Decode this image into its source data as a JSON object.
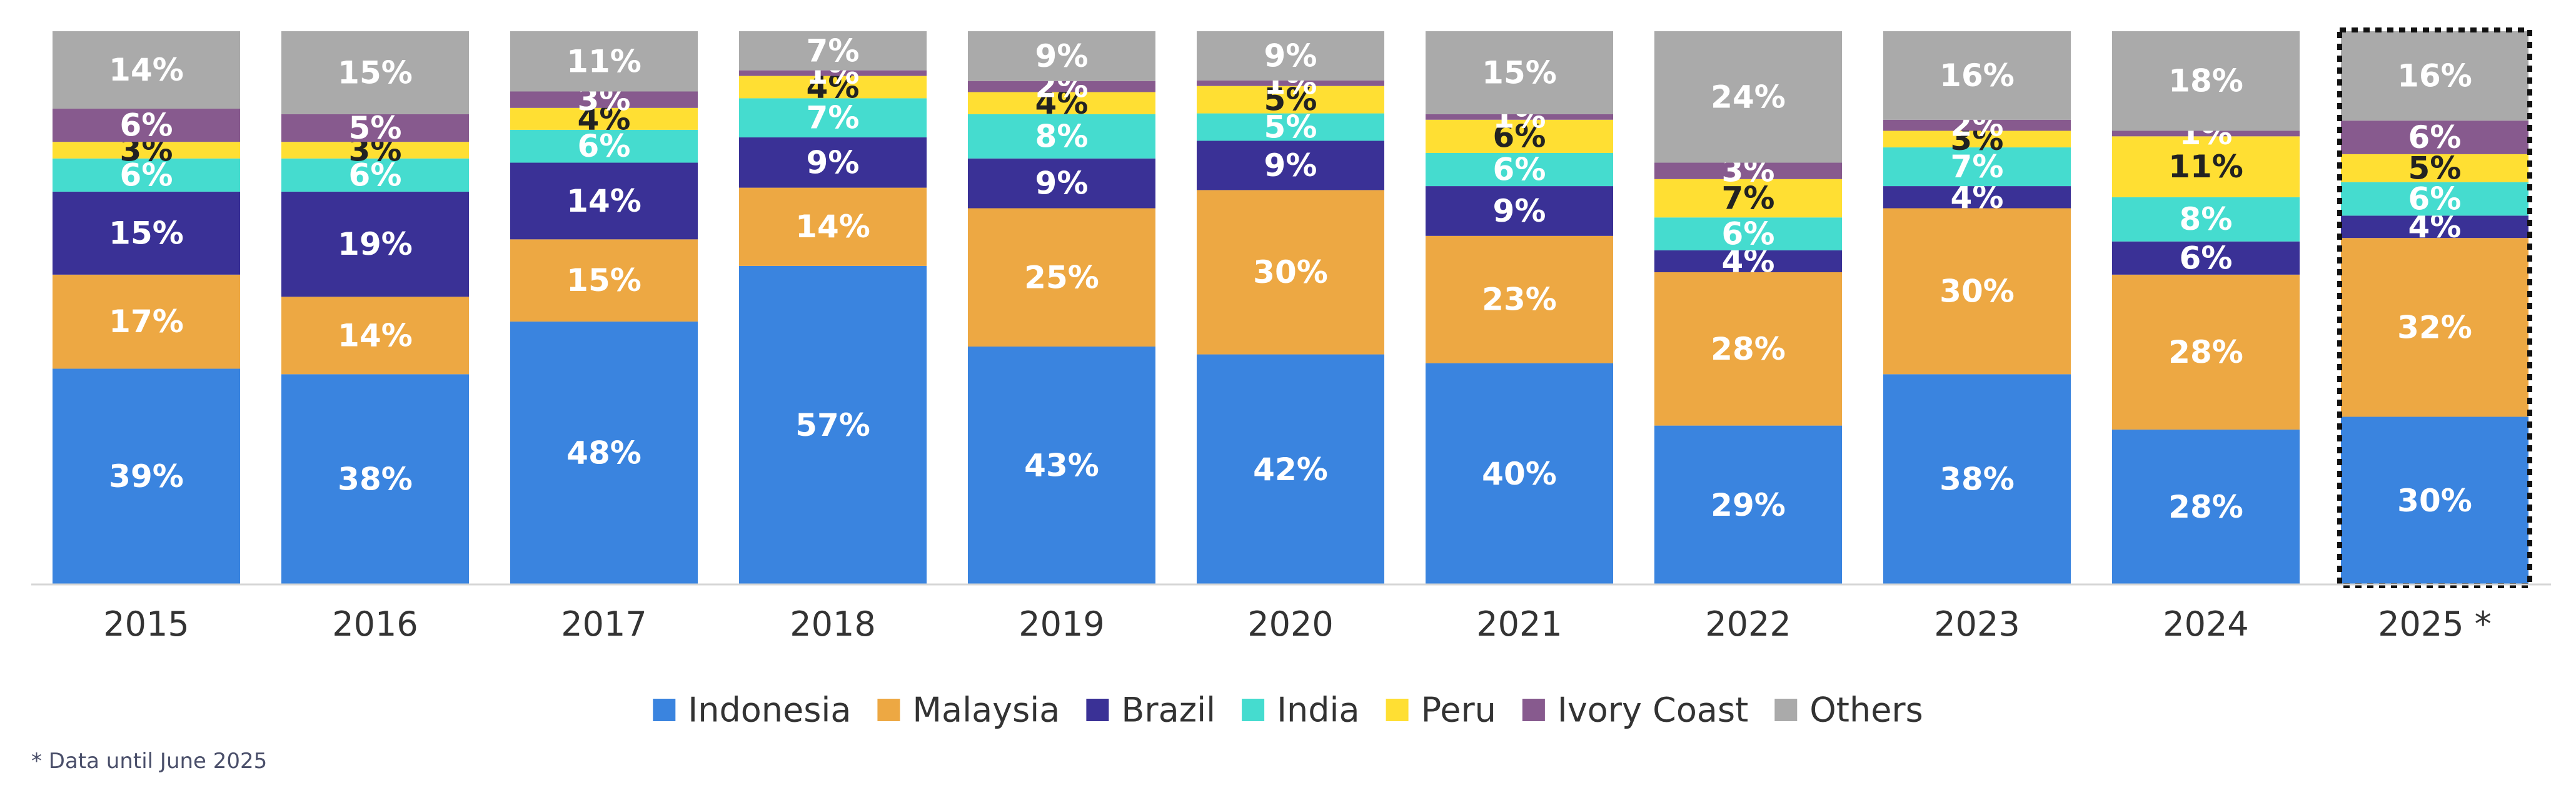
{
  "chart_data": {
    "type": "bar",
    "stacked": true,
    "percent_stacked": true,
    "categories": [
      "2015",
      "2016",
      "2017",
      "2018",
      "2019",
      "2020",
      "2021",
      "2022",
      "2023",
      "2024",
      "2025 *"
    ],
    "series": [
      {
        "name": "Indonesia",
        "color": "#3A84DF",
        "label_color": "#ffffff",
        "values": [
          39,
          38,
          48,
          57,
          43,
          42,
          40,
          29,
          38,
          28,
          30
        ]
      },
      {
        "name": "Malaysia",
        "color": "#EDA843",
        "label_color": "#ffffff",
        "values": [
          17,
          14,
          15,
          14,
          25,
          30,
          23,
          28,
          30,
          28,
          32
        ]
      },
      {
        "name": "Brazil",
        "color": "#3A3196",
        "label_color": "#ffffff",
        "values": [
          15,
          19,
          14,
          9,
          9,
          9,
          9,
          4,
          4,
          6,
          4
        ]
      },
      {
        "name": "India",
        "color": "#45DCCF",
        "label_color": "#ffffff",
        "values": [
          6,
          6,
          6,
          7,
          8,
          5,
          6,
          6,
          7,
          8,
          6
        ]
      },
      {
        "name": "Peru",
        "color": "#FFDF33",
        "label_color": "#222222",
        "values": [
          3,
          3,
          4,
          4,
          4,
          5,
          6,
          7,
          3,
          11,
          5
        ]
      },
      {
        "name": "Ivory Coast",
        "color": "#875A8E",
        "label_color": "#ffffff",
        "values": [
          6,
          5,
          3,
          1,
          2,
          1,
          1,
          3,
          2,
          1,
          6
        ]
      },
      {
        "name": "Others",
        "color": "#AAAAAA",
        "label_color": "#ffffff",
        "values": [
          14,
          15,
          11,
          7,
          9,
          9,
          15,
          24,
          16,
          18,
          16
        ]
      }
    ],
    "highlighted_category": "2025 *",
    "highlight_style": "dotted-border",
    "legend_position": "bottom",
    "grid": false,
    "title": "",
    "xlabel": "",
    "ylabel": ""
  },
  "footnote": "* Data until June 2025"
}
